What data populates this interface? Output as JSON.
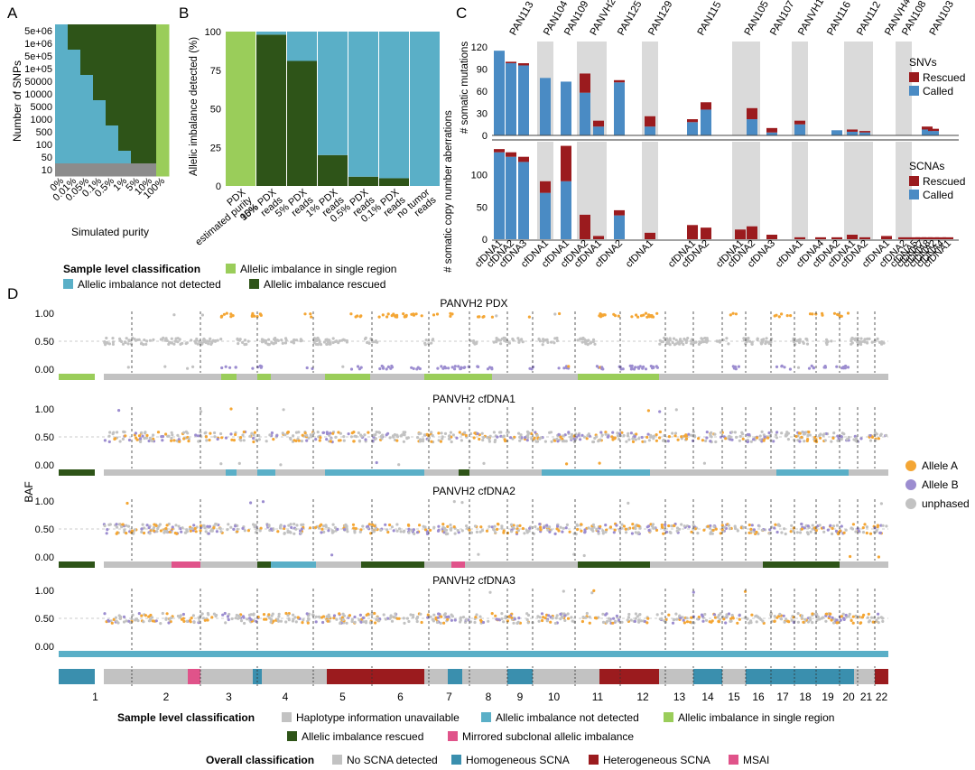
{
  "colors": {
    "light_green": "#9ACD5A",
    "dark_green": "#2E5418",
    "teal": "#5AAFC7",
    "gray_panel": "#DADADA",
    "dark_red": "#9B1B1E",
    "blue": "#4A8BC4",
    "orange": "#F4A634",
    "purple": "#9C8DD0",
    "unphased": "#C2C2C2",
    "homog": "#3A8FAE",
    "mirror": "#E0538A"
  },
  "panel_labels": {
    "a": "A",
    "b": "B",
    "c": "C",
    "d": "D"
  },
  "chart_data": [
    {
      "id": "A",
      "type": "heatmap",
      "ylabel": "Number of SNPs",
      "xlabel": "Simulated purity",
      "y_categories": [
        "5e+06",
        "1e+06",
        "5e+05",
        "1e+05",
        "50000",
        "10000",
        "5000",
        "1000",
        "500",
        "100",
        "50",
        "10"
      ],
      "x_categories": [
        "0%",
        "0.01%",
        "0.05%",
        "0.1%",
        "0.5%",
        "1%",
        "5%",
        "10%",
        "100%"
      ]
    },
    {
      "id": "B",
      "type": "bar",
      "stacked": true,
      "ylabel": "Allelic imbalance detected (%)",
      "ylim": [
        0,
        100
      ],
      "yticks": [
        "0",
        "25",
        "50",
        "75",
        "100"
      ],
      "categories": [
        [
          "PDX",
          "estimated purity",
          "95%"
        ],
        [
          "10% PDX",
          "reads"
        ],
        [
          "5% PDX",
          "reads"
        ],
        [
          "1% PDX",
          "reads"
        ],
        [
          "0.5% PDX",
          "reads"
        ],
        [
          "0.1% PDX",
          "reads"
        ],
        [
          "no tumor",
          "reads"
        ]
      ],
      "series": [
        {
          "values": [
            100,
            0,
            0,
            0,
            0,
            0,
            0
          ]
        },
        {
          "values": [
            0,
            98,
            81,
            20,
            6,
            5,
            0
          ]
        },
        {
          "values": [
            0,
            2,
            19,
            80,
            94,
            95,
            100
          ]
        }
      ]
    },
    {
      "id": "C",
      "type": "bar",
      "stacked": true,
      "patients": [
        "PAN113",
        "PAN104",
        "PAN109",
        "PANVH2",
        "PAN125",
        "PAN129",
        "PAN115",
        "PAN105",
        "PAN107",
        "PANVH1",
        "PAN116",
        "PAN112",
        "PANVH4",
        "PAN108",
        "PAN103"
      ],
      "samples": [
        "cfDNA1",
        "cfDNA2",
        "cfDNA3",
        "cfDNA1",
        "cfDNA1",
        "cfDNA2",
        "cfDNA1",
        "cfDNA2",
        "cfDNA1",
        "cfDNA1",
        "cfDNA2",
        "cfDNA1",
        "cfDNA2",
        "cfDNA3",
        "cfDNA1",
        "cfDNA4",
        "cfDNA2",
        "cfDNA1",
        "cfDNA2",
        "cfDNA1",
        "cfDNA2",
        "cfDNA5",
        "cfDNA7",
        "cfDNA8",
        "cfDNA2",
        "cfDNA4",
        "cfDNA1"
      ],
      "top": {
        "ylabel": "# somatic mutations",
        "yticks": [
          "0",
          "30",
          "60",
          "90",
          "120"
        ],
        "ylim": [
          0,
          125
        ],
        "legend_title": "SNVs",
        "series": [
          {
            "name": "Called",
            "values": [
              115,
              98,
              95,
              78,
              73,
              58,
              12,
              72,
              12,
              18,
              35,
              0,
              22,
              4,
              15,
              0,
              7,
              5,
              4,
              0,
              0,
              0,
              0,
              8,
              6,
              0,
              0
            ]
          },
          {
            "name": "Rescued",
            "values": [
              0,
              2,
              3,
              0,
              0,
              26,
              8,
              3,
              14,
              4,
              10,
              0,
              15,
              6,
              5,
              0,
              0,
              3,
              2,
              0,
              0,
              0,
              0,
              4,
              3,
              0,
              0
            ]
          }
        ]
      },
      "bottom": {
        "ylabel": "# somatic copy number aberrations",
        "yticks": [
          "0",
          "50",
          "100"
        ],
        "ylim": [
          0,
          150
        ],
        "legend_title": "SCNAs",
        "series": [
          {
            "name": "Called",
            "values": [
              135,
              128,
              120,
              72,
              90,
              0,
              0,
              37,
              0,
              0,
              0,
              0,
              0,
              0,
              0,
              0,
              0,
              0,
              0,
              0,
              0,
              0,
              0,
              0,
              0,
              0,
              0
            ]
          },
          {
            "name": "Rescued",
            "values": [
              5,
              7,
              8,
              18,
              55,
              38,
              5,
              8,
              10,
              22,
              18,
              15,
              20,
              7,
              3,
              3,
              3,
              7,
              3,
              5,
              3,
              3,
              3,
              3,
              3,
              3,
              3
            ]
          }
        ]
      }
    },
    {
      "id": "D",
      "type": "scatter",
      "ylabel": "BAF",
      "yticks": [
        "0.00",
        "0.50",
        "1.00"
      ],
      "tracks": [
        "PANVH2 PDX",
        "PANVH2 cfDNA1",
        "PANVH2 cfDNA2",
        "PANVH2 cfDNA3"
      ],
      "chromosomes": [
        "1",
        "2",
        "3",
        "4",
        "5",
        "6",
        "7",
        "8",
        "9",
        "10",
        "11",
        "12",
        "13",
        "14",
        "15",
        "16",
        "17",
        "18",
        "19",
        "20",
        "21",
        "22"
      ],
      "legend": [
        "Allele A",
        "Allele B",
        "unphased"
      ]
    }
  ],
  "legend_b": {
    "title": "Sample level classification",
    "items": [
      "Allelic imbalance in single region",
      "Allelic imbalance not detected",
      "Allelic imbalance rescued"
    ]
  },
  "legend_bottom": {
    "sample_title": "Sample level classification",
    "sample_items": [
      "Haplotype information unavailable",
      "Allelic imbalance not detected",
      "Allelic imbalance in single region",
      "Allelic imbalance rescued",
      "Mirrored subclonal allelic imbalance"
    ],
    "overall_title": "Overall classification",
    "overall_items": [
      "No SCNA detected",
      "Homogeneous SCNA",
      "Heterogeneous SCNA",
      "MSAI"
    ]
  }
}
